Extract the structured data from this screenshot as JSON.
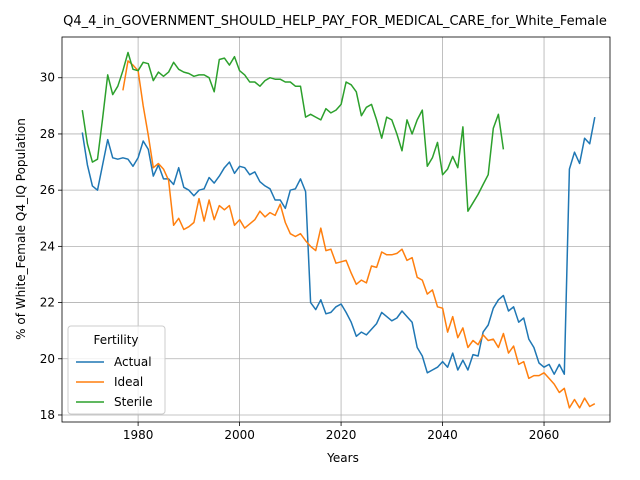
{
  "chart_data": {
    "type": "line",
    "title": "Q4_4_in_GOVERNMENT_SHOULD_HELP_PAY_FOR_MEDICAL_CARE_for_White_Female",
    "xlabel": "Years",
    "ylabel": "% of White_Female Q4_IQ Population",
    "xlim": [
      1965,
      2073
    ],
    "ylim": [
      17.75,
      31.45
    ],
    "xticks": [
      1980,
      2000,
      2020,
      2040,
      2060
    ],
    "yticks": [
      18,
      20,
      22,
      24,
      26,
      28,
      30
    ],
    "grid": true,
    "legend": {
      "title": "Fertility",
      "placement": "lower-left"
    },
    "series": [
      {
        "name": "Actual",
        "color": "#1f77b4",
        "points": [
          [
            1969,
            28.05
          ],
          [
            1970,
            26.9
          ],
          [
            1971,
            26.15
          ],
          [
            1972,
            26.0
          ],
          [
            1973,
            26.9
          ],
          [
            1974,
            27.8
          ],
          [
            1975,
            27.15
          ],
          [
            1976,
            27.1
          ],
          [
            1977,
            27.15
          ],
          [
            1978,
            27.1
          ],
          [
            1979,
            26.85
          ],
          [
            1980,
            27.15
          ],
          [
            1981,
            27.75
          ],
          [
            1982,
            27.45
          ],
          [
            1983,
            26.5
          ],
          [
            1984,
            26.9
          ],
          [
            1985,
            26.4
          ],
          [
            1986,
            26.4
          ],
          [
            1987,
            26.2
          ],
          [
            1988,
            26.8
          ],
          [
            1989,
            26.1
          ],
          [
            1990,
            26.0
          ],
          [
            1991,
            25.8
          ],
          [
            1992,
            26.0
          ],
          [
            1993,
            26.05
          ],
          [
            1994,
            26.45
          ],
          [
            1995,
            26.25
          ],
          [
            1996,
            26.5
          ],
          [
            1997,
            26.8
          ],
          [
            1998,
            27.0
          ],
          [
            1999,
            26.6
          ],
          [
            2000,
            26.85
          ],
          [
            2001,
            26.8
          ],
          [
            2002,
            26.55
          ],
          [
            2003,
            26.65
          ],
          [
            2004,
            26.3
          ],
          [
            2005,
            26.15
          ],
          [
            2006,
            26.05
          ],
          [
            2007,
            25.65
          ],
          [
            2008,
            25.65
          ],
          [
            2009,
            25.35
          ],
          [
            2010,
            26.0
          ],
          [
            2011,
            26.05
          ],
          [
            2012,
            26.4
          ],
          [
            2013,
            25.95
          ],
          [
            2014,
            22.0
          ],
          [
            2015,
            21.75
          ],
          [
            2016,
            22.1
          ],
          [
            2017,
            21.6
          ],
          [
            2018,
            21.65
          ],
          [
            2019,
            21.85
          ],
          [
            2020,
            21.95
          ],
          [
            2021,
            21.65
          ],
          [
            2022,
            21.3
          ],
          [
            2023,
            20.8
          ],
          [
            2024,
            20.95
          ],
          [
            2025,
            20.85
          ],
          [
            2026,
            21.05
          ],
          [
            2027,
            21.25
          ],
          [
            2028,
            21.65
          ],
          [
            2029,
            21.5
          ],
          [
            2030,
            21.35
          ],
          [
            2031,
            21.45
          ],
          [
            2032,
            21.7
          ],
          [
            2033,
            21.5
          ],
          [
            2034,
            21.3
          ],
          [
            2035,
            20.4
          ],
          [
            2036,
            20.1
          ],
          [
            2037,
            19.5
          ],
          [
            2038,
            19.6
          ],
          [
            2039,
            19.7
          ],
          [
            2040,
            19.9
          ],
          [
            2041,
            19.7
          ],
          [
            2042,
            20.2
          ],
          [
            2043,
            19.6
          ],
          [
            2044,
            19.95
          ],
          [
            2045,
            19.6
          ],
          [
            2046,
            20.15
          ],
          [
            2047,
            20.1
          ],
          [
            2048,
            20.95
          ],
          [
            2049,
            21.2
          ],
          [
            2050,
            21.8
          ],
          [
            2051,
            22.1
          ],
          [
            2052,
            22.25
          ],
          [
            2053,
            21.7
          ],
          [
            2054,
            21.85
          ],
          [
            2055,
            21.3
          ],
          [
            2056,
            21.45
          ],
          [
            2057,
            20.7
          ],
          [
            2058,
            20.4
          ],
          [
            2059,
            19.85
          ],
          [
            2060,
            19.7
          ],
          [
            2061,
            19.8
          ],
          [
            2062,
            19.45
          ],
          [
            2063,
            19.8
          ],
          [
            2064,
            19.45
          ],
          [
            2065,
            26.75
          ],
          [
            2066,
            27.35
          ],
          [
            2067,
            26.95
          ],
          [
            2068,
            27.85
          ],
          [
            2069,
            27.65
          ],
          [
            2070,
            28.6
          ]
        ]
      },
      {
        "name": "Ideal",
        "color": "#ff7f0e",
        "points": [
          [
            1977,
            29.55
          ],
          [
            1978,
            30.6
          ],
          [
            1979,
            30.45
          ],
          [
            1980,
            30.25
          ],
          [
            1981,
            29.0
          ],
          [
            1982,
            27.95
          ],
          [
            1983,
            26.8
          ],
          [
            1984,
            26.95
          ],
          [
            1985,
            26.75
          ],
          [
            1986,
            26.35
          ],
          [
            1987,
            24.75
          ],
          [
            1988,
            25.0
          ],
          [
            1989,
            24.6
          ],
          [
            1990,
            24.7
          ],
          [
            1991,
            24.85
          ],
          [
            1992,
            25.7
          ],
          [
            1993,
            24.9
          ],
          [
            1994,
            25.65
          ],
          [
            1995,
            24.95
          ],
          [
            1996,
            25.45
          ],
          [
            1997,
            25.3
          ],
          [
            1998,
            25.45
          ],
          [
            1999,
            24.75
          ],
          [
            2000,
            24.95
          ],
          [
            2001,
            24.65
          ],
          [
            2002,
            24.8
          ],
          [
            2003,
            24.95
          ],
          [
            2004,
            25.25
          ],
          [
            2005,
            25.05
          ],
          [
            2006,
            25.2
          ],
          [
            2007,
            25.1
          ],
          [
            2008,
            25.5
          ],
          [
            2009,
            24.85
          ],
          [
            2010,
            24.45
          ],
          [
            2011,
            24.35
          ],
          [
            2012,
            24.45
          ],
          [
            2013,
            24.2
          ],
          [
            2014,
            24.0
          ],
          [
            2015,
            23.85
          ],
          [
            2016,
            24.65
          ],
          [
            2017,
            23.85
          ],
          [
            2018,
            23.9
          ],
          [
            2019,
            23.4
          ],
          [
            2020,
            23.45
          ],
          [
            2021,
            23.5
          ],
          [
            2022,
            23.05
          ],
          [
            2023,
            22.65
          ],
          [
            2024,
            22.8
          ],
          [
            2025,
            22.7
          ],
          [
            2026,
            23.3
          ],
          [
            2027,
            23.25
          ],
          [
            2028,
            23.8
          ],
          [
            2029,
            23.7
          ],
          [
            2030,
            23.7
          ],
          [
            2031,
            23.75
          ],
          [
            2032,
            23.9
          ],
          [
            2033,
            23.5
          ],
          [
            2034,
            23.6
          ],
          [
            2035,
            22.9
          ],
          [
            2036,
            22.8
          ],
          [
            2037,
            22.3
          ],
          [
            2038,
            22.45
          ],
          [
            2039,
            21.85
          ],
          [
            2040,
            21.8
          ],
          [
            2041,
            20.95
          ],
          [
            2042,
            21.5
          ],
          [
            2043,
            20.75
          ],
          [
            2044,
            21.1
          ],
          [
            2045,
            20.4
          ],
          [
            2046,
            20.65
          ],
          [
            2047,
            20.5
          ],
          [
            2048,
            20.85
          ],
          [
            2049,
            20.65
          ],
          [
            2050,
            20.7
          ],
          [
            2051,
            20.4
          ],
          [
            2052,
            20.9
          ],
          [
            2053,
            20.2
          ],
          [
            2054,
            20.45
          ],
          [
            2055,
            19.8
          ],
          [
            2056,
            19.9
          ],
          [
            2057,
            19.3
          ],
          [
            2058,
            19.4
          ],
          [
            2059,
            19.4
          ],
          [
            2060,
            19.5
          ],
          [
            2061,
            19.3
          ],
          [
            2062,
            19.1
          ],
          [
            2063,
            18.8
          ],
          [
            2064,
            18.95
          ],
          [
            2065,
            18.25
          ],
          [
            2066,
            18.55
          ],
          [
            2067,
            18.25
          ],
          [
            2068,
            18.6
          ],
          [
            2069,
            18.3
          ],
          [
            2070,
            18.4
          ]
        ]
      },
      {
        "name": "Sterile",
        "color": "#2ca02c",
        "points": [
          [
            1969,
            28.85
          ],
          [
            1970,
            27.65
          ],
          [
            1971,
            27.0
          ],
          [
            1972,
            27.1
          ],
          [
            1973,
            28.55
          ],
          [
            1974,
            30.1
          ],
          [
            1975,
            29.4
          ],
          [
            1976,
            29.7
          ],
          [
            1977,
            30.25
          ],
          [
            1978,
            30.9
          ],
          [
            1979,
            30.3
          ],
          [
            1980,
            30.25
          ],
          [
            1981,
            30.55
          ],
          [
            1982,
            30.5
          ],
          [
            1983,
            29.9
          ],
          [
            1984,
            30.2
          ],
          [
            1985,
            30.05
          ],
          [
            1986,
            30.2
          ],
          [
            1987,
            30.55
          ],
          [
            1988,
            30.3
          ],
          [
            1989,
            30.2
          ],
          [
            1990,
            30.15
          ],
          [
            1991,
            30.05
          ],
          [
            1992,
            30.1
          ],
          [
            1993,
            30.1
          ],
          [
            1994,
            30.0
          ],
          [
            1995,
            29.5
          ],
          [
            1996,
            30.65
          ],
          [
            1997,
            30.7
          ],
          [
            1998,
            30.45
          ],
          [
            1999,
            30.75
          ],
          [
            2000,
            30.25
          ],
          [
            2001,
            30.1
          ],
          [
            2002,
            29.85
          ],
          [
            2003,
            29.85
          ],
          [
            2004,
            29.7
          ],
          [
            2005,
            29.9
          ],
          [
            2006,
            30.0
          ],
          [
            2007,
            29.95
          ],
          [
            2008,
            29.95
          ],
          [
            2009,
            29.85
          ],
          [
            2010,
            29.85
          ],
          [
            2011,
            29.7
          ],
          [
            2012,
            29.7
          ],
          [
            2013,
            28.6
          ],
          [
            2014,
            28.7
          ],
          [
            2015,
            28.6
          ],
          [
            2016,
            28.5
          ],
          [
            2017,
            28.9
          ],
          [
            2018,
            28.75
          ],
          [
            2019,
            28.85
          ],
          [
            2020,
            29.05
          ],
          [
            2021,
            29.85
          ],
          [
            2022,
            29.75
          ],
          [
            2023,
            29.5
          ],
          [
            2024,
            28.65
          ],
          [
            2025,
            28.95
          ],
          [
            2026,
            29.05
          ],
          [
            2027,
            28.5
          ],
          [
            2028,
            27.85
          ],
          [
            2029,
            28.6
          ],
          [
            2030,
            28.5
          ],
          [
            2031,
            28.0
          ],
          [
            2032,
            27.4
          ],
          [
            2033,
            28.5
          ],
          [
            2034,
            28.0
          ],
          [
            2035,
            28.5
          ],
          [
            2036,
            28.85
          ],
          [
            2037,
            26.85
          ],
          [
            2038,
            27.15
          ],
          [
            2039,
            27.7
          ],
          [
            2040,
            26.55
          ],
          [
            2041,
            26.75
          ],
          [
            2042,
            27.2
          ],
          [
            2043,
            26.8
          ],
          [
            2044,
            28.25
          ],
          [
            2045,
            25.25
          ],
          [
            2046,
            25.55
          ],
          [
            2047,
            25.85
          ],
          [
            2048,
            26.2
          ],
          [
            2049,
            26.55
          ],
          [
            2050,
            28.2
          ],
          [
            2051,
            28.7
          ],
          [
            2052,
            27.45
          ]
        ]
      }
    ]
  }
}
